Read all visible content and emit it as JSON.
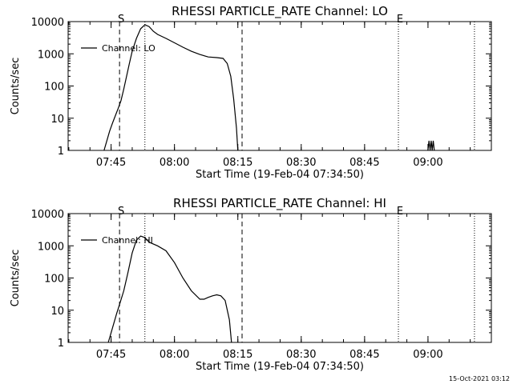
{
  "footer": {
    "timestamp": "15-Oct-2021 03:12"
  },
  "chart_data": [
    {
      "type": "line",
      "title": "RHESSI PARTICLE_RATE Channel: LO",
      "xlabel": "Start Time (19-Feb-04 07:34:50)",
      "ylabel": "Counts/sec",
      "y_scale": "log",
      "ylim": [
        1,
        10000
      ],
      "y_ticks": [
        "1",
        "10",
        "100",
        "1000",
        "10000"
      ],
      "xlim": [
        "07:34:50",
        "09:15:00"
      ],
      "x_ticks": [
        "07:45",
        "08:00",
        "08:15",
        "08:30",
        "08:45",
        "09:00"
      ],
      "legend": {
        "position": "top-left",
        "entries": [
          "Channel: LO"
        ]
      },
      "markers": [
        {
          "label": "S",
          "time": "07:47:00",
          "style": "dashed"
        },
        {
          "label": "",
          "time": "07:53:00",
          "style": "dotted"
        },
        {
          "label": "",
          "time": "08:16:00",
          "style": "dashed"
        },
        {
          "label": "E",
          "time": "08:53:00",
          "style": "dotted"
        },
        {
          "label": "",
          "time": "09:11:00",
          "style": "dotted"
        }
      ],
      "series": [
        {
          "name": "Channel: LO",
          "points": [
            [
              "07:43:20",
              1
            ],
            [
              "07:44:00",
              2
            ],
            [
              "07:44:40",
              4
            ],
            [
              "07:45:20",
              7
            ],
            [
              "07:46:00",
              12
            ],
            [
              "07:46:40",
              20
            ],
            [
              "07:47:20",
              35
            ],
            [
              "07:48:00",
              80
            ],
            [
              "07:48:40",
              200
            ],
            [
              "07:49:20",
              500
            ],
            [
              "07:50:00",
              1200
            ],
            [
              "07:51:00",
              3000
            ],
            [
              "07:52:00",
              6000
            ],
            [
              "07:53:00",
              8000
            ],
            [
              "07:54:00",
              7000
            ],
            [
              "07:55:00",
              5000
            ],
            [
              "07:56:00",
              4000
            ],
            [
              "07:58:00",
              3000
            ],
            [
              "08:00:00",
              2200
            ],
            [
              "08:02:00",
              1600
            ],
            [
              "08:04:00",
              1200
            ],
            [
              "08:06:00",
              950
            ],
            [
              "08:08:00",
              800
            ],
            [
              "08:10:00",
              760
            ],
            [
              "08:11:30",
              720
            ],
            [
              "08:12:30",
              500
            ],
            [
              "08:13:20",
              200
            ],
            [
              "08:14:00",
              40
            ],
            [
              "08:14:40",
              5
            ],
            [
              "08:15:00",
              1
            ]
          ]
        },
        {
          "name": "",
          "points": [
            [
              "09:00:00",
              1
            ],
            [
              "09:00:15",
              2
            ],
            [
              "09:00:30",
              1
            ],
            [
              "09:00:45",
              2
            ],
            [
              "09:01:00",
              1
            ],
            [
              "09:01:15",
              2
            ],
            [
              "09:01:30",
              1
            ]
          ]
        }
      ]
    },
    {
      "type": "line",
      "title": "RHESSI PARTICLE_RATE Channel: HI",
      "xlabel": "Start Time (19-Feb-04 07:34:50)",
      "ylabel": "Counts/sec",
      "y_scale": "log",
      "ylim": [
        1,
        10000
      ],
      "y_ticks": [
        "1",
        "10",
        "100",
        "1000",
        "10000"
      ],
      "xlim": [
        "07:34:50",
        "09:15:00"
      ],
      "x_ticks": [
        "07:45",
        "08:00",
        "08:15",
        "08:30",
        "08:45",
        "09:00"
      ],
      "legend": {
        "position": "top-left",
        "entries": [
          "Channel: HI"
        ]
      },
      "markers": [
        {
          "label": "S",
          "time": "07:47:00",
          "style": "dashed"
        },
        {
          "label": "",
          "time": "07:53:00",
          "style": "dotted"
        },
        {
          "label": "",
          "time": "08:16:00",
          "style": "dashed"
        },
        {
          "label": "E",
          "time": "08:53:00",
          "style": "dotted"
        },
        {
          "label": "",
          "time": "09:11:00",
          "style": "dotted"
        }
      ],
      "series": [
        {
          "name": "Channel: HI",
          "points": [
            [
              "07:44:20",
              1
            ],
            [
              "07:45:00",
              2
            ],
            [
              "07:45:40",
              4
            ],
            [
              "07:46:20",
              8
            ],
            [
              "07:47:00",
              15
            ],
            [
              "07:48:00",
              40
            ],
            [
              "07:49:00",
              150
            ],
            [
              "07:50:00",
              600
            ],
            [
              "07:51:00",
              1500
            ],
            [
              "07:52:00",
              2000
            ],
            [
              "07:53:00",
              1800
            ],
            [
              "07:54:00",
              1300
            ],
            [
              "07:56:00",
              1000
            ],
            [
              "07:58:00",
              700
            ],
            [
              "08:00:00",
              300
            ],
            [
              "08:02:00",
              100
            ],
            [
              "08:04:00",
              40
            ],
            [
              "08:06:00",
              22
            ],
            [
              "08:07:00",
              22
            ],
            [
              "08:08:00",
              25
            ],
            [
              "08:09:00",
              28
            ],
            [
              "08:10:00",
              30
            ],
            [
              "08:11:00",
              28
            ],
            [
              "08:12:00",
              20
            ],
            [
              "08:13:00",
              5
            ],
            [
              "08:13:30",
              1
            ]
          ]
        }
      ]
    }
  ]
}
